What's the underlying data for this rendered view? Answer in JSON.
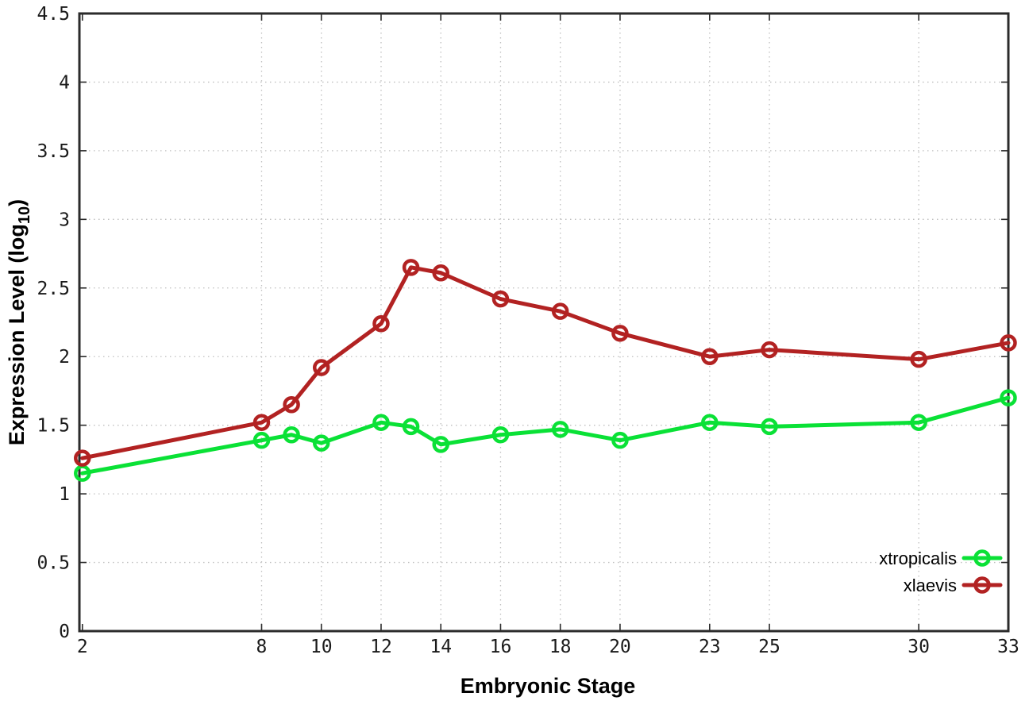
{
  "chart_data": {
    "type": "line",
    "title": "",
    "xlabel": "Embryonic Stage",
    "ylabel": "Expression Level (log10)",
    "ylabel_parts": {
      "pre": "Expression Level (log",
      "sub": "10",
      "post": ")"
    },
    "x": [
      2,
      8,
      9,
      10,
      12,
      13,
      14,
      16,
      18,
      20,
      23,
      25,
      30,
      33
    ],
    "x_ticks": [
      2,
      8,
      10,
      12,
      14,
      16,
      18,
      20,
      23,
      25,
      30,
      33
    ],
    "y_ticks": [
      0,
      0.5,
      1,
      1.5,
      2,
      2.5,
      3,
      3.5,
      4,
      4.5
    ],
    "xlim": [
      1.9,
      33
    ],
    "ylim": [
      0,
      4.5
    ],
    "grid": true,
    "legend_position": "bottom-right",
    "series": [
      {
        "name": "xtropicalis",
        "color": "#0ae136",
        "marker": "open-circle",
        "values": [
          1.15,
          1.39,
          1.43,
          1.37,
          1.52,
          1.49,
          1.36,
          1.43,
          1.47,
          1.39,
          1.52,
          1.49,
          1.52,
          1.7
        ]
      },
      {
        "name": "xlaevis",
        "color": "#b22222",
        "marker": "open-circle",
        "values": [
          1.26,
          1.52,
          1.65,
          1.92,
          2.24,
          2.65,
          2.61,
          2.42,
          2.33,
          2.17,
          2.0,
          2.05,
          1.98,
          2.1
        ]
      }
    ],
    "colors": {
      "border": "#2b2b2b",
      "grid": "#bfbfbf",
      "tick_label": "#1a1a1a"
    }
  }
}
